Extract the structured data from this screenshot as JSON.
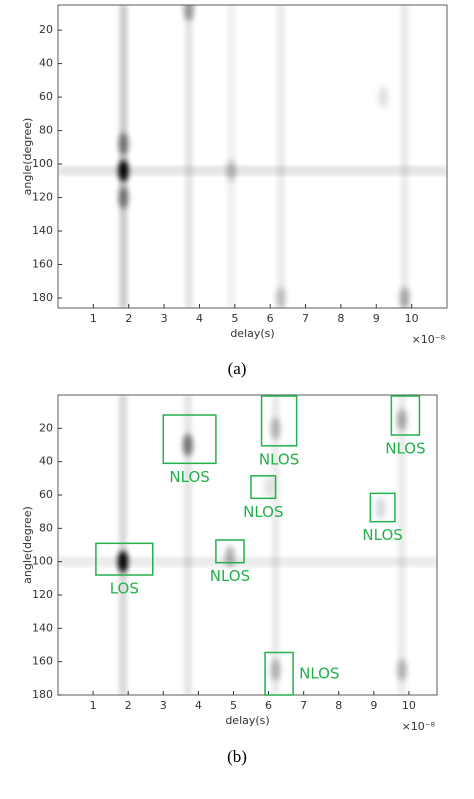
{
  "chart_data": [
    {
      "type": "heatmap",
      "caption": "(a)",
      "x_label": "delay(s)",
      "y_label": "angle(degree)",
      "x_exponent": "×10⁻⁸",
      "xlim": [
        0,
        11
      ],
      "ylim": [
        5,
        186
      ],
      "y_reversed": true,
      "xticks": [
        1,
        2,
        3,
        4,
        5,
        6,
        7,
        8,
        9,
        10
      ],
      "yticks": [
        20,
        40,
        60,
        80,
        100,
        120,
        140,
        160,
        180
      ],
      "color": "#000000",
      "blobs": {
        "x": [
          1.85,
          1.85,
          1.85,
          3.7,
          4.9,
          6.3,
          9.8,
          9.2
        ],
        "y": [
          104,
          88,
          120,
          8,
          104,
          180,
          180,
          60
        ],
        "values": [
          1.0,
          0.45,
          0.45,
          0.35,
          0.2,
          0.2,
          0.3,
          0.12
        ]
      },
      "vstreaks": {
        "x": [
          1.85,
          3.7,
          4.9,
          6.3,
          9.8
        ],
        "values": [
          0.2,
          0.1,
          0.06,
          0.08,
          0.08
        ]
      },
      "hstreaks": {
        "y": [
          104
        ],
        "values": [
          0.1
        ]
      },
      "annotations": []
    },
    {
      "type": "heatmap",
      "caption": "(b)",
      "x_label": "delay(s)",
      "y_label": "angle(degree)",
      "x_exponent": "×10⁻⁸",
      "xlim": [
        0,
        10.8
      ],
      "ylim": [
        0,
        180
      ],
      "y_reversed": true,
      "xticks": [
        1,
        2,
        3,
        4,
        5,
        6,
        7,
        8,
        9,
        10
      ],
      "yticks": [
        20,
        40,
        60,
        80,
        100,
        120,
        140,
        160,
        180
      ],
      "color": "#000000",
      "blobs": {
        "x": [
          1.85,
          3.7,
          6.2,
          9.8,
          4.9,
          6.2,
          9.8,
          9.2,
          6.0
        ],
        "y": [
          100,
          30,
          20,
          15,
          97,
          165,
          165,
          68,
          55
        ],
        "values": [
          1.0,
          0.5,
          0.25,
          0.3,
          0.3,
          0.25,
          0.25,
          0.15,
          0.1
        ]
      },
      "vstreaks": {
        "x": [
          1.85,
          3.7,
          6.2,
          9.8
        ],
        "values": [
          0.15,
          0.1,
          0.08,
          0.08
        ]
      },
      "hstreaks": {
        "y": [
          100
        ],
        "values": [
          0.08
        ]
      },
      "annotation_color": "#22b14c",
      "annotations": [
        {
          "text": "LOS",
          "x": [
            1.08,
            2.7
          ],
          "y": [
            89,
            108
          ],
          "label_side": "below"
        },
        {
          "text": "NLOS",
          "x": [
            3.0,
            4.5
          ],
          "y": [
            12,
            41
          ],
          "label_side": "below"
        },
        {
          "text": "NLOS",
          "x": [
            5.8,
            6.8
          ],
          "y": [
            0.6,
            30.5
          ],
          "label_side": "below"
        },
        {
          "text": "NLOS",
          "x": [
            5.5,
            6.2
          ],
          "y": [
            48.5,
            62
          ],
          "label_side": "below"
        },
        {
          "text": "NLOS",
          "x": [
            9.5,
            10.3
          ],
          "y": [
            0.6,
            24
          ],
          "label_side": "below"
        },
        {
          "text": "NLOS",
          "x": [
            8.9,
            9.6
          ],
          "y": [
            59,
            76
          ],
          "label_side": "below"
        },
        {
          "text": "NLOS",
          "x": [
            4.5,
            5.3
          ],
          "y": [
            87,
            100.6
          ],
          "label_side": "below"
        },
        {
          "text": "NLOS",
          "x": [
            5.9,
            6.7
          ],
          "y": [
            154.5,
            180
          ],
          "label_side": "right"
        }
      ]
    }
  ]
}
